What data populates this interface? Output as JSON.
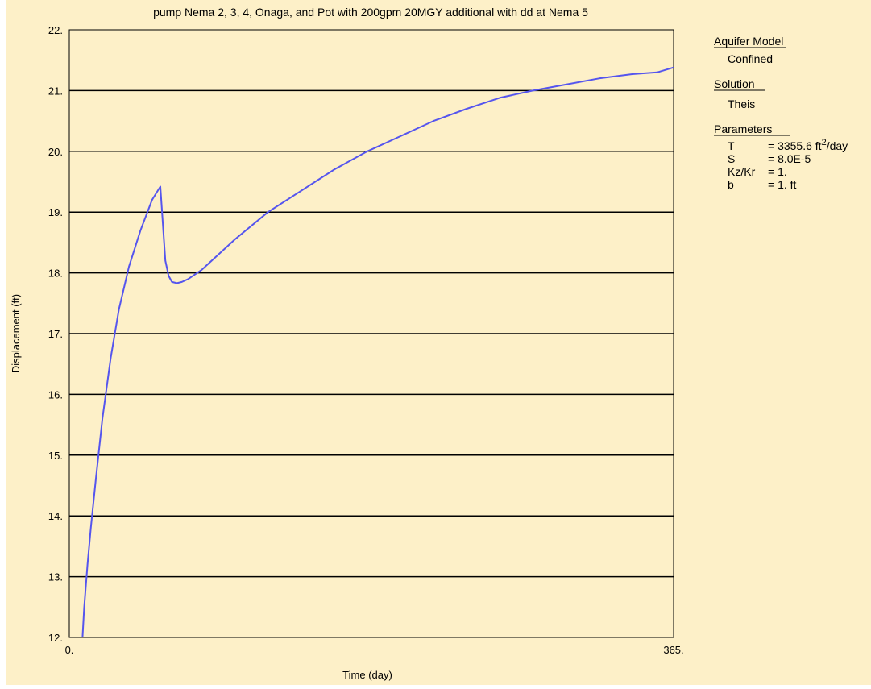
{
  "chart_data": {
    "type": "line",
    "title": "pump Nema 2, 3, 4, Onaga, and Pot with 200gpm 20MGY additional with dd at Nema 5",
    "xlabel": "Time (day)",
    "ylabel": "Displacement (ft)",
    "xlim": [
      0,
      365
    ],
    "ylim": [
      12,
      22
    ],
    "x_tick_labels": [
      "0.",
      "365."
    ],
    "y_tick_labels": [
      "12.",
      "13.",
      "14.",
      "15.",
      "16.",
      "17.",
      "18.",
      "19.",
      "20.",
      "21.",
      "22."
    ],
    "grid": "horizontal",
    "colors": {
      "background": "#fdf0c8",
      "line": "#5555ee",
      "grid": "#000000"
    },
    "series": [
      {
        "x": [
          8,
          9,
          11,
          13,
          16,
          20,
          25,
          30,
          36,
          43,
          50,
          55,
          58,
          60,
          62,
          65,
          68,
          72,
          80,
          90,
          100,
          120,
          140,
          160,
          180,
          200,
          220,
          240,
          260,
          280,
          300,
          320,
          340,
          355,
          365
        ],
        "y": [
          12.0,
          12.5,
          13.2,
          13.8,
          14.6,
          15.6,
          16.6,
          17.4,
          18.1,
          18.7,
          19.2,
          19.42,
          18.2,
          17.95,
          17.85,
          17.83,
          17.85,
          17.9,
          18.05,
          18.3,
          18.55,
          19.0,
          19.35,
          19.7,
          20.0,
          20.25,
          20.5,
          20.7,
          20.88,
          21.0,
          21.1,
          21.2,
          21.27,
          21.3,
          21.38
        ]
      }
    ]
  },
  "legend": {
    "aquifer_model_label": "Aquifer Model",
    "aquifer_model_value": "Confined",
    "solution_label": "Solution",
    "solution_value": "Theis",
    "parameters_label": "Parameters",
    "params": [
      {
        "name": "T",
        "value": "= 3355.6 ft",
        "sup": "2",
        "suffix": "/day"
      },
      {
        "name": "S",
        "value": "= 8.0E-5",
        "sup": "",
        "suffix": ""
      },
      {
        "name": "Kz/Kr",
        "value": "= 1.",
        "sup": "",
        "suffix": ""
      },
      {
        "name": "b",
        "value": "= 1. ft",
        "sup": "",
        "suffix": ""
      }
    ]
  }
}
